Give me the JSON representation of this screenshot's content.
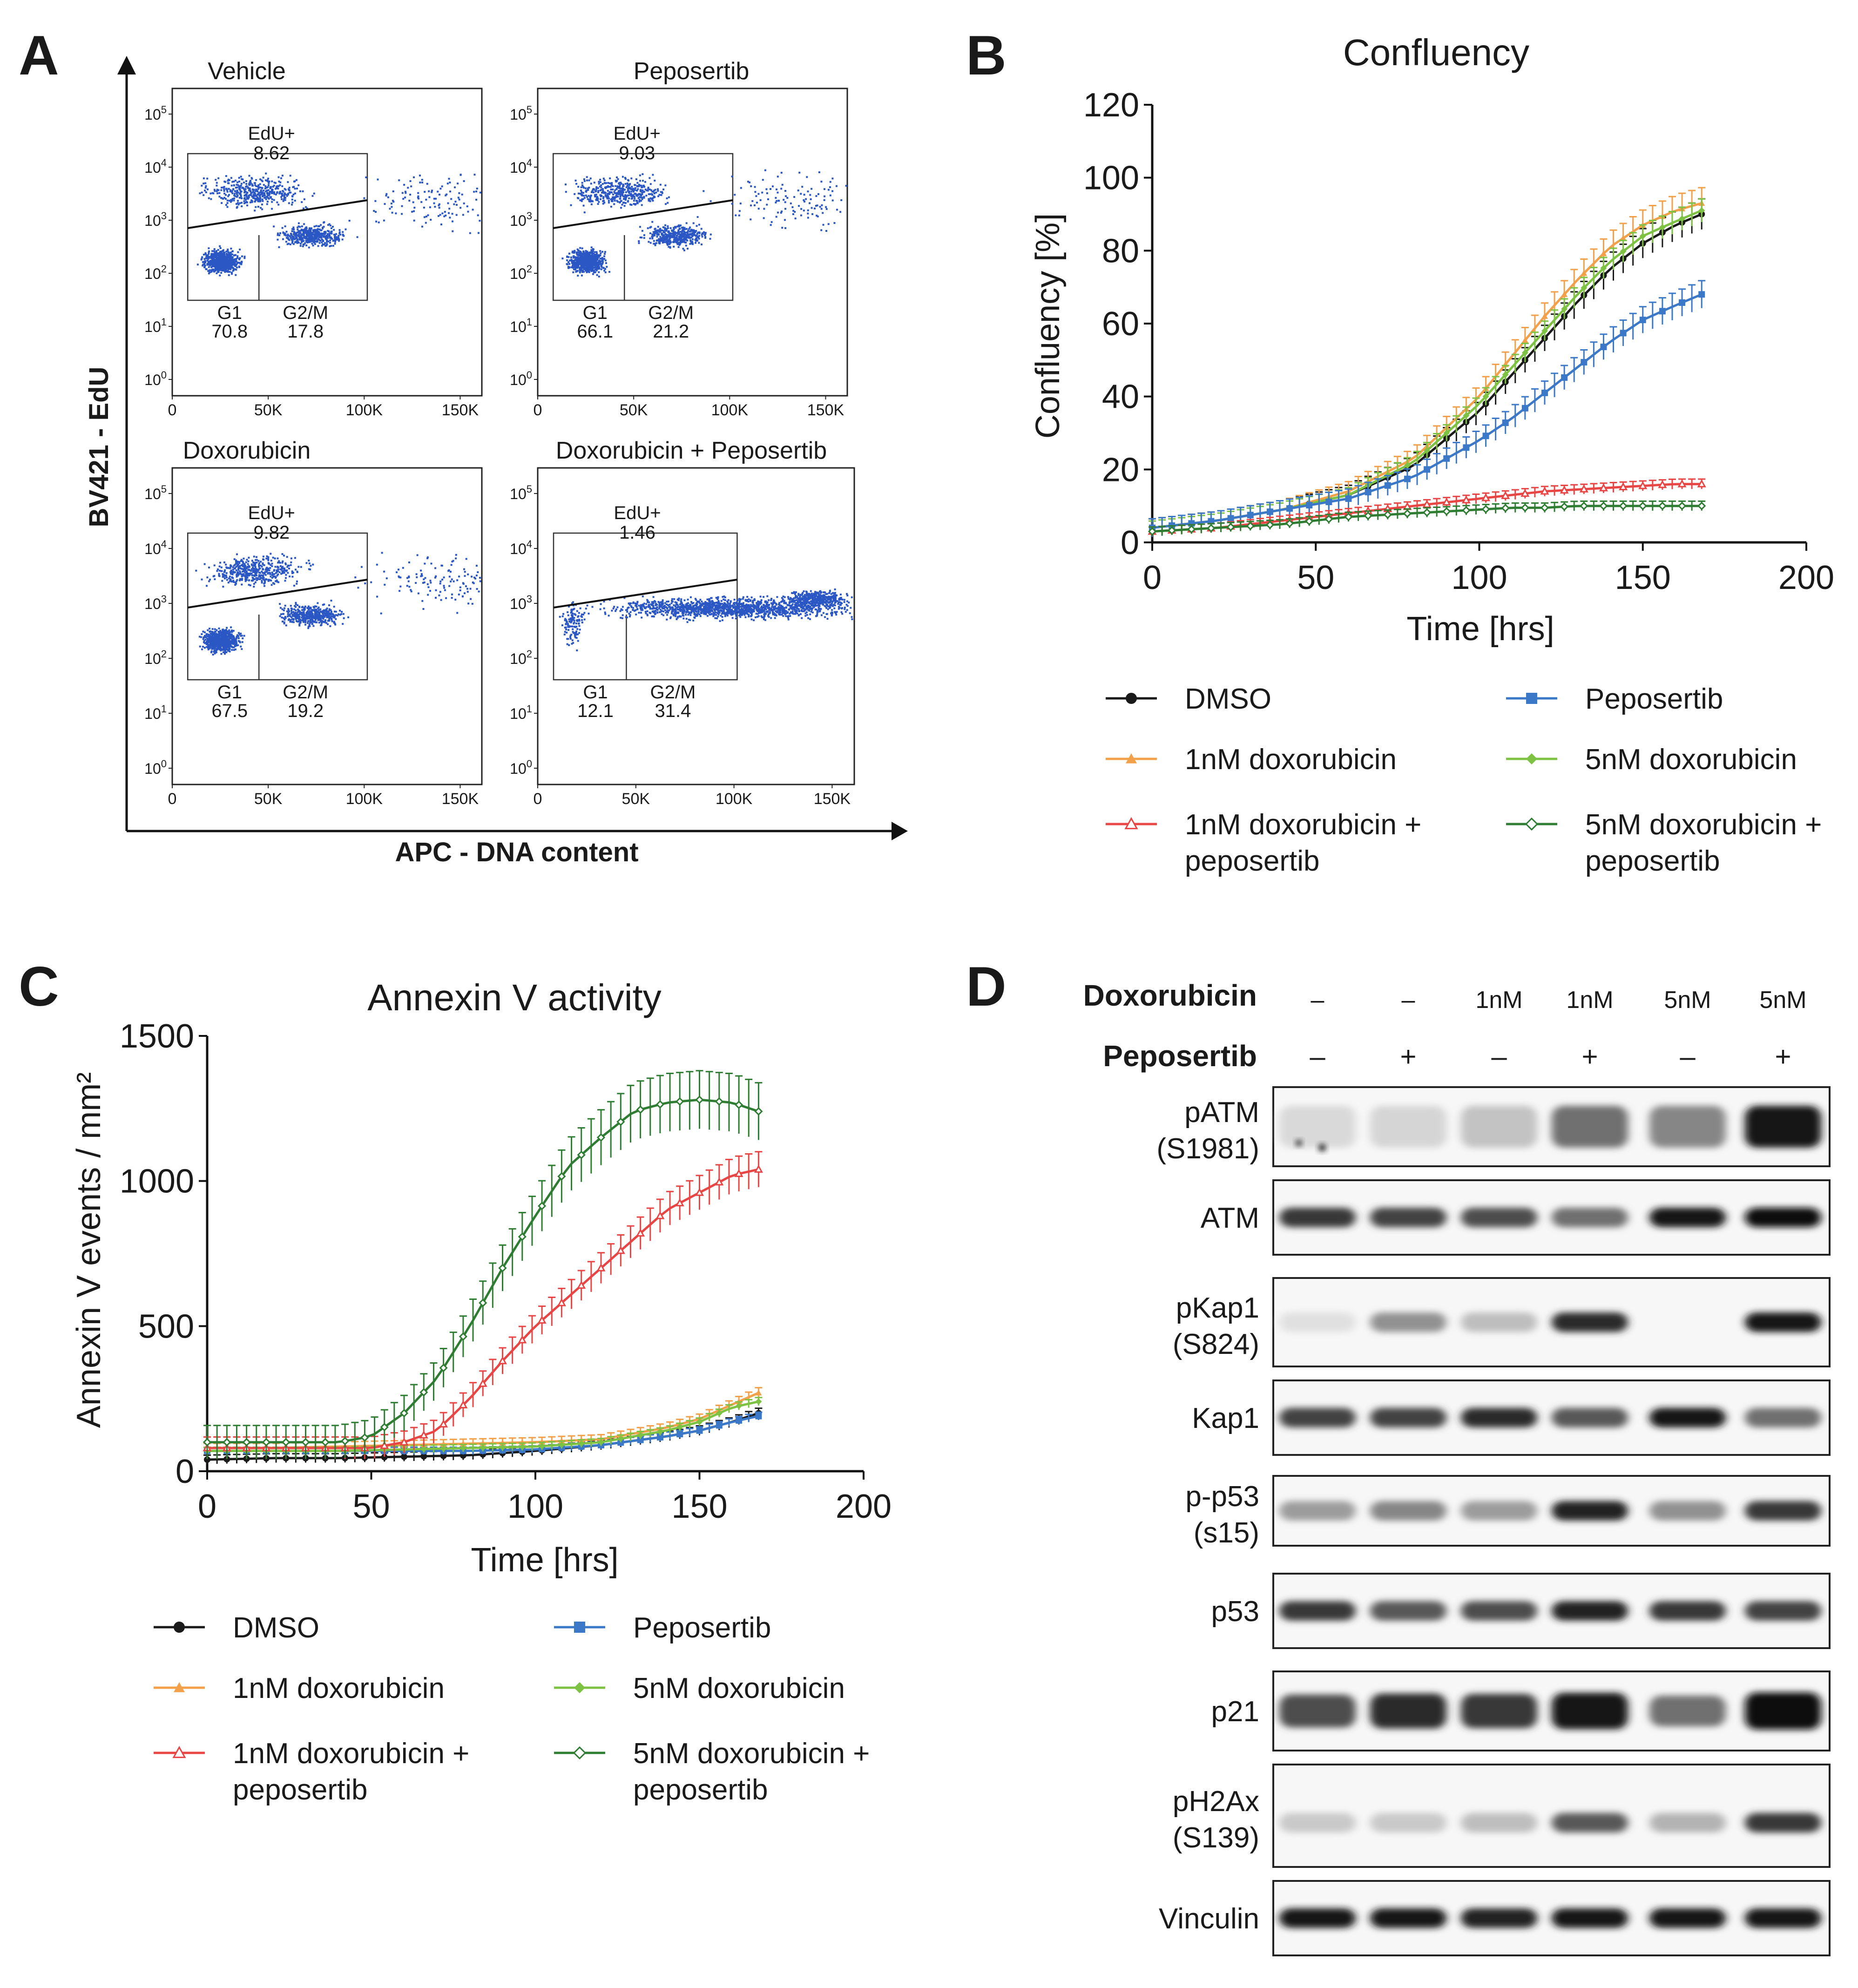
{
  "panels": {
    "A": {
      "letter": "A",
      "ylabel": "BV421 - EdU",
      "xlabel": "APC - DNA content",
      "y_ticks": [
        {
          "base": "10",
          "exp": "0"
        },
        {
          "base": "10",
          "exp": "1"
        },
        {
          "base": "10",
          "exp": "2"
        },
        {
          "base": "10",
          "exp": "3"
        },
        {
          "base": "10",
          "exp": "4"
        },
        {
          "base": "10",
          "exp": "5"
        }
      ],
      "x_ticks": [
        "0",
        "50K",
        "100K",
        "150K"
      ],
      "edu_label": "EdU+",
      "g1_label": "G1",
      "g2m_label": "G2/M",
      "plots": [
        {
          "title": "Vehicle",
          "edu": "8.62",
          "g1": "70.8",
          "g2m": "17.8"
        },
        {
          "title": "Peposertib",
          "edu": "9.03",
          "g1": "66.1",
          "g2m": "21.2"
        },
        {
          "title": "Doxorubicin",
          "edu": "9.82",
          "g1": "67.5",
          "g2m": "19.2"
        },
        {
          "title": "Doxorubicin + Peposertib",
          "edu": "1.46",
          "g1": "12.1",
          "g2m": "31.4"
        }
      ]
    },
    "B": {
      "letter": "B"
    },
    "C": {
      "letter": "C"
    },
    "D": {
      "letter": "D",
      "doxorubicin_label": "Doxorubicin",
      "peposertib_label": "Peposertib",
      "doxorubicin": [
        "–",
        "–",
        "1nM",
        "1nM",
        "5nM",
        "5nM"
      ],
      "peposertib": [
        "–",
        "+",
        "–",
        "+",
        "–",
        "+"
      ],
      "blots": [
        {
          "name": "pATM",
          "name2": "(S1981)",
          "intensity": [
            0.08,
            0.1,
            0.18,
            0.55,
            0.45,
            0.95
          ]
        },
        {
          "name": "ATM",
          "name2": "",
          "intensity": [
            0.8,
            0.75,
            0.7,
            0.55,
            0.95,
            1.0
          ]
        },
        {
          "name": "pKap1",
          "name2": "(S824)",
          "intensity": [
            0.05,
            0.4,
            0.2,
            0.85,
            0.0,
            0.95
          ]
        },
        {
          "name": "Kap1",
          "name2": "",
          "intensity": [
            0.75,
            0.75,
            0.85,
            0.65,
            0.95,
            0.55
          ]
        },
        {
          "name": "p-p53",
          "name2": "(s15)",
          "intensity": [
            0.35,
            0.45,
            0.35,
            0.9,
            0.4,
            0.8
          ]
        },
        {
          "name": "p53",
          "name2": "",
          "intensity": [
            0.8,
            0.65,
            0.7,
            0.9,
            0.8,
            0.75
          ]
        },
        {
          "name": "p21",
          "name2": "",
          "intensity": [
            0.7,
            0.85,
            0.8,
            0.95,
            0.55,
            1.0
          ]
        },
        {
          "name": "pH2Ax",
          "name2": "(S139)",
          "intensity": [
            0.15,
            0.15,
            0.2,
            0.65,
            0.25,
            0.8
          ]
        },
        {
          "name": "Vinculin",
          "name2": "",
          "intensity": [
            0.95,
            0.95,
            0.9,
            0.95,
            0.95,
            0.95
          ]
        }
      ]
    }
  },
  "series_colors": {
    "DMSO": "#1a1a1a",
    "Peposertib": "#3b78c8",
    "1nM doxorubicin": "#f2a04a",
    "5nM doxorubicin": "#7dc242",
    "1nM doxorubicin + peposertib": "#e84545",
    "5nM doxorubicin + peposertib": "#2e7d32"
  },
  "legend_order": [
    {
      "name": "DMSO",
      "line1": "DMSO",
      "line2": "",
      "marker": "circle"
    },
    {
      "name": "Peposertib",
      "line1": "Peposertib",
      "line2": "",
      "marker": "square"
    },
    {
      "name": "1nM doxorubicin",
      "line1": "1nM doxorubicin",
      "line2": "",
      "marker": "triangle"
    },
    {
      "name": "5nM doxorubicin",
      "line1": "5nM doxorubicin",
      "line2": "",
      "marker": "diamond"
    },
    {
      "name": "1nM doxorubicin + peposertib",
      "line1": "1nM doxorubicin +",
      "line2": "peposertib",
      "marker": "triangle-open"
    },
    {
      "name": "5nM doxorubicin + peposertib",
      "line1": "5nM doxorubicin +",
      "line2": "peposertib",
      "marker": "diamond-open"
    }
  ],
  "chart_data": [
    {
      "id": "B",
      "type": "line",
      "title": "Confluency",
      "xlabel": "Time [hrs]",
      "ylabel": "Confluency [%]",
      "xlim": [
        0,
        200
      ],
      "ylim": [
        0,
        120
      ],
      "xticks": [
        0,
        50,
        100,
        150,
        200
      ],
      "yticks": [
        0,
        20,
        40,
        60,
        80,
        100,
        120
      ],
      "series": [
        {
          "name": "DMSO",
          "x": [
            0,
            20,
            40,
            60,
            80,
            100,
            110,
            120,
            130,
            140,
            150,
            160,
            168
          ],
          "y": [
            4,
            6,
            9,
            13,
            21,
            36,
            46,
            56,
            66,
            75,
            82,
            87,
            90
          ],
          "err": 4
        },
        {
          "name": "1nM doxorubicin",
          "x": [
            0,
            20,
            40,
            60,
            80,
            100,
            110,
            120,
            130,
            140,
            150,
            160,
            168
          ],
          "y": [
            4,
            6,
            9,
            14,
            23,
            40,
            51,
            62,
            72,
            81,
            87,
            91,
            93
          ],
          "err": 4
        },
        {
          "name": "5nM doxorubicin",
          "x": [
            0,
            20,
            40,
            60,
            80,
            100,
            110,
            120,
            130,
            140,
            150,
            160,
            168
          ],
          "y": [
            4,
            6,
            9,
            13,
            22,
            38,
            48,
            58,
            68,
            77,
            84,
            88,
            91
          ],
          "err": 3
        },
        {
          "name": "Peposertib",
          "x": [
            0,
            20,
            40,
            60,
            80,
            100,
            110,
            120,
            130,
            140,
            150,
            160,
            168
          ],
          "y": [
            4,
            6,
            9,
            12,
            18,
            28,
            34,
            41,
            48,
            55,
            61,
            65,
            68
          ],
          "err": 4
        },
        {
          "name": "1nM doxorubicin + peposertib",
          "x": [
            0,
            20,
            40,
            60,
            80,
            100,
            110,
            120,
            130,
            140,
            150,
            160,
            168
          ],
          "y": [
            3,
            4,
            6,
            8,
            10,
            12,
            13,
            14,
            14.5,
            15,
            15.5,
            16,
            16
          ],
          "err": 2
        },
        {
          "name": "5nM doxorubicin + peposertib",
          "x": [
            0,
            20,
            40,
            60,
            80,
            100,
            110,
            120,
            130,
            140,
            150,
            160,
            168
          ],
          "y": [
            3,
            4,
            5,
            7,
            8,
            9,
            9.5,
            9.5,
            10,
            10,
            10,
            10,
            10
          ],
          "err": 2
        }
      ]
    },
    {
      "id": "C",
      "type": "line",
      "title": "Annexin V activity",
      "xlabel": "Time [hrs]",
      "ylabel": "Annexin V events / mm²",
      "xlim": [
        0,
        200
      ],
      "ylim": [
        0,
        1500
      ],
      "xticks": [
        0,
        50,
        100,
        150,
        200
      ],
      "yticks": [
        0,
        500,
        1000,
        1500
      ],
      "series": [
        {
          "name": "DMSO",
          "x": [
            0,
            20,
            40,
            60,
            80,
            100,
            120,
            140,
            150,
            160,
            168
          ],
          "y": [
            40,
            45,
            45,
            50,
            55,
            70,
            90,
            120,
            140,
            170,
            200
          ],
          "err": 25
        },
        {
          "name": "Peposertib",
          "x": [
            0,
            20,
            40,
            60,
            80,
            100,
            120,
            140,
            150,
            160,
            168
          ],
          "y": [
            70,
            70,
            70,
            70,
            70,
            75,
            90,
            120,
            140,
            170,
            190
          ],
          "err": 20
        },
        {
          "name": "1nM doxorubicin",
          "x": [
            0,
            20,
            40,
            60,
            80,
            100,
            120,
            140,
            150,
            160,
            168
          ],
          "y": [
            80,
            80,
            85,
            90,
            95,
            100,
            110,
            150,
            180,
            230,
            270
          ],
          "err": 25
        },
        {
          "name": "5nM doxorubicin",
          "x": [
            0,
            20,
            40,
            60,
            80,
            100,
            120,
            140,
            150,
            160,
            168
          ],
          "y": [
            70,
            70,
            70,
            75,
            80,
            85,
            100,
            140,
            170,
            220,
            240
          ],
          "err": 20
        },
        {
          "name": "1nM doxorubicin + peposertib",
          "x": [
            0,
            20,
            40,
            50,
            60,
            70,
            80,
            90,
            100,
            110,
            120,
            130,
            140,
            150,
            160,
            168
          ],
          "y": [
            80,
            80,
            80,
            80,
            100,
            140,
            250,
            380,
            500,
            600,
            700,
            800,
            900,
            960,
            1020,
            1040
          ],
          "err": 60
        },
        {
          "name": "5nM doxorubicin + peposertib",
          "x": [
            0,
            20,
            40,
            50,
            60,
            70,
            80,
            90,
            100,
            110,
            120,
            130,
            140,
            150,
            160,
            168
          ],
          "y": [
            100,
            100,
            100,
            120,
            200,
            320,
            500,
            700,
            880,
            1050,
            1150,
            1240,
            1270,
            1280,
            1270,
            1240
          ],
          "err": 90
        }
      ]
    }
  ]
}
